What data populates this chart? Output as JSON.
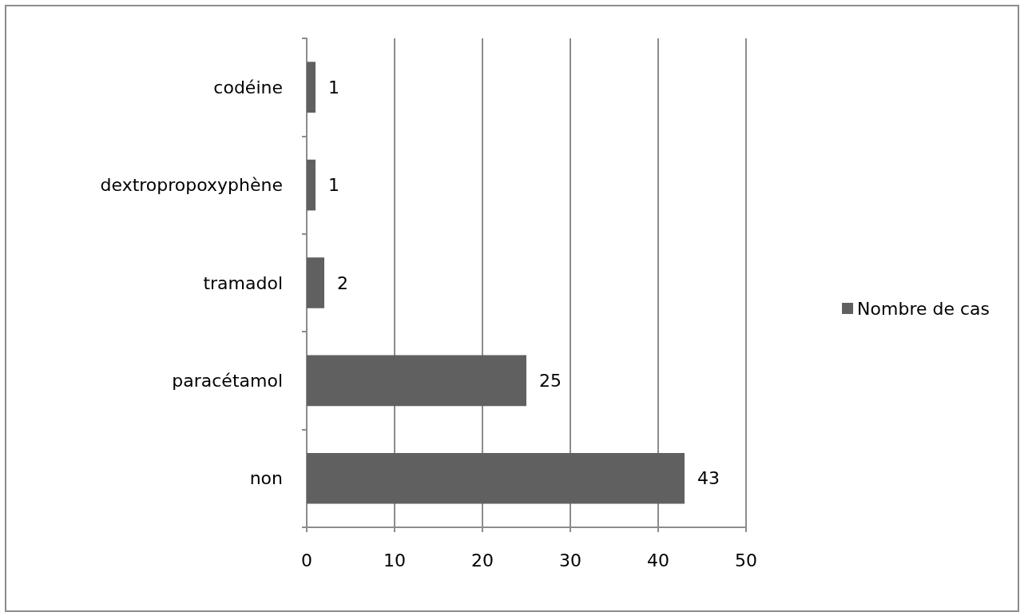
{
  "chart_data": {
    "type": "bar",
    "orientation": "horizontal",
    "categories": [
      "codéine",
      "dextropropoxyphène",
      "tramadol",
      "paracétamol",
      "non"
    ],
    "series": [
      {
        "name": "Nombre de cas",
        "color": "#606060",
        "values": [
          1,
          1,
          2,
          25,
          43
        ]
      }
    ],
    "xlim": [
      0,
      50
    ],
    "xticks": [
      0,
      10,
      20,
      30,
      40,
      50
    ],
    "grid": "x",
    "legend": "right",
    "data_labels": true
  }
}
